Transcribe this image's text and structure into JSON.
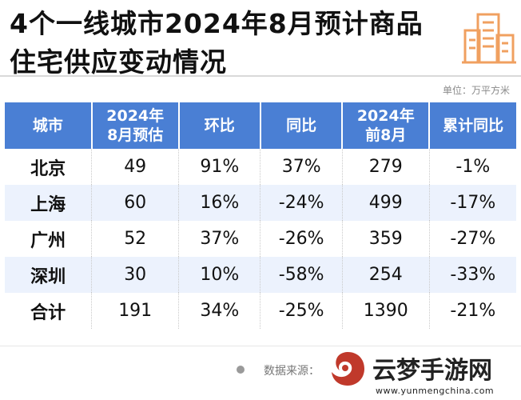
{
  "title": {
    "line1": "4个一线城市2024年8月预计商品",
    "line2": "住宅供应变动情况"
  },
  "unit_label": "单位：万平方米",
  "table": {
    "headers": [
      "城市",
      "2024年\n8月预估",
      "环比",
      "同比",
      "2024年\n前8月",
      "累计同比"
    ],
    "rows": [
      [
        "北京",
        "49",
        "91%",
        "37%",
        "279",
        "-1%"
      ],
      [
        "上海",
        "60",
        "16%",
        "-24%",
        "499",
        "-17%"
      ],
      [
        "广州",
        "52",
        "37%",
        "-26%",
        "359",
        "-27%"
      ],
      [
        "深圳",
        "30",
        "10%",
        "-58%",
        "254",
        "-33%"
      ],
      [
        "合计",
        "191",
        "34%",
        "-25%",
        "1390",
        "-21%"
      ]
    ]
  },
  "source_label": "数据来源：",
  "watermark": {
    "brand": "云梦手游网",
    "url": "www.yunmengchina.com"
  },
  "colors": {
    "header_bg": "#4a7fd4",
    "row_alt_bg": "#ecf2fd",
    "icon_orange": "#f0a060",
    "logo_red": "#c0392b"
  }
}
